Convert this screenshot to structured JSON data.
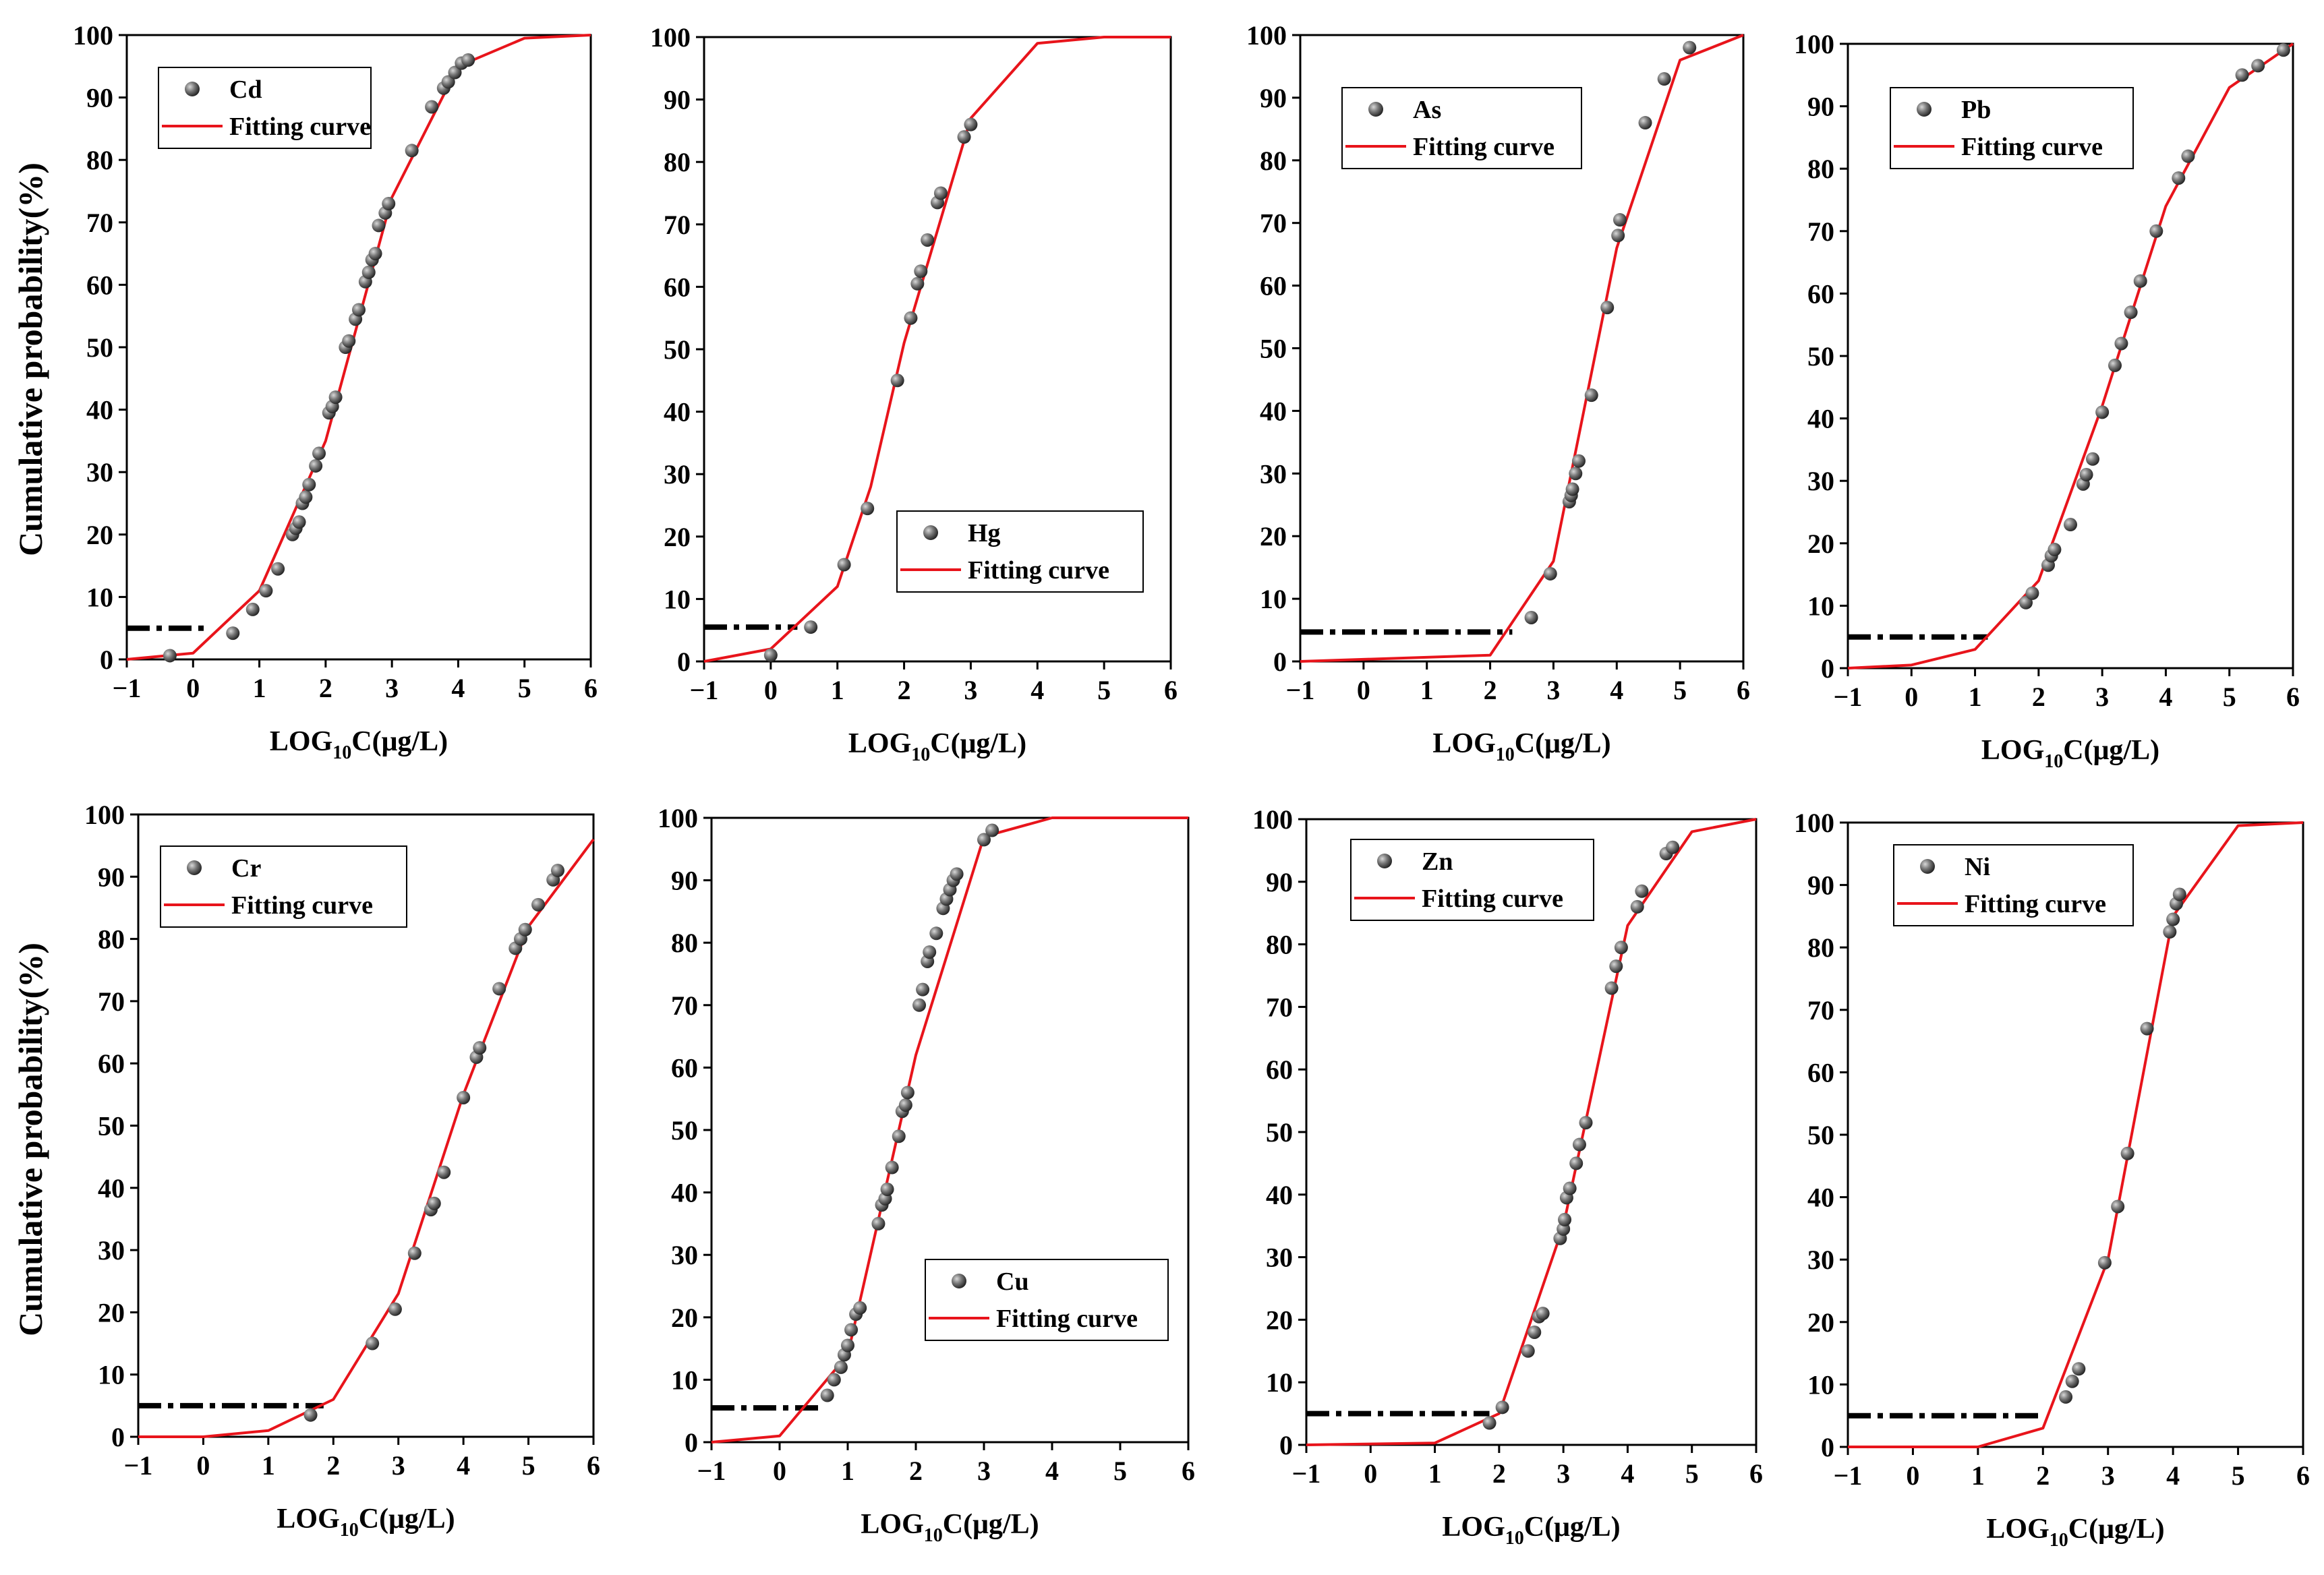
{
  "figure": {
    "ylabel": "Cumulative probability(%)",
    "xlabel_prefix": "LOG",
    "xlabel_sub": "10",
    "xlabel_suffix": "C(μg/L)"
  },
  "chart_data": [
    {
      "type": "scatter",
      "metal": "Cd",
      "legend": [
        "Cd",
        "Fitting curve"
      ],
      "legend_position": "top-left",
      "xlim": [
        -1,
        6
      ],
      "ylim": [
        0,
        100
      ],
      "xticks": [
        "−1",
        "0",
        "1",
        "2",
        "3",
        "4",
        "5",
        "6"
      ],
      "yticks": [
        "0",
        "10",
        "20",
        "30",
        "40",
        "50",
        "60",
        "70",
        "80",
        "90",
        "100"
      ],
      "threshold": {
        "y": 5,
        "x_end": 0.2
      },
      "points": [
        [
          -0.35,
          0.6
        ],
        [
          0.6,
          4.2
        ],
        [
          0.9,
          8
        ],
        [
          1.1,
          11
        ],
        [
          1.28,
          14.5
        ],
        [
          1.5,
          20
        ],
        [
          1.55,
          21
        ],
        [
          1.6,
          22
        ],
        [
          1.65,
          25
        ],
        [
          1.7,
          26
        ],
        [
          1.75,
          28
        ],
        [
          1.85,
          31
        ],
        [
          1.9,
          33
        ],
        [
          2.05,
          39.5
        ],
        [
          2.1,
          40.5
        ],
        [
          2.15,
          42
        ],
        [
          2.3,
          50
        ],
        [
          2.35,
          51
        ],
        [
          2.45,
          54.5
        ],
        [
          2.5,
          56
        ],
        [
          2.6,
          60.5
        ],
        [
          2.65,
          62
        ],
        [
          2.7,
          64
        ],
        [
          2.75,
          65
        ],
        [
          2.8,
          69.5
        ],
        [
          2.9,
          71.5
        ],
        [
          2.95,
          73
        ],
        [
          3.3,
          81.5
        ],
        [
          3.6,
          88.5
        ],
        [
          3.78,
          91.5
        ],
        [
          3.85,
          92.5
        ],
        [
          3.95,
          94
        ],
        [
          4.05,
          95.5
        ],
        [
          4.15,
          96
        ]
      ],
      "curve": [
        [
          -1,
          0
        ],
        [
          0,
          1
        ],
        [
          1,
          11
        ],
        [
          2,
          35
        ],
        [
          3,
          74
        ],
        [
          4,
          95
        ],
        [
          5,
          99.5
        ],
        [
          6,
          100
        ]
      ]
    },
    {
      "type": "scatter",
      "metal": "Hg",
      "legend": [
        "Hg",
        "Fitting curve"
      ],
      "legend_position": "center-right",
      "xlim": [
        -1,
        6
      ],
      "ylim": [
        0,
        100
      ],
      "xticks": [
        "−1",
        "0",
        "1",
        "2",
        "3",
        "4",
        "5",
        "6"
      ],
      "yticks": [
        "0",
        "10",
        "20",
        "30",
        "40",
        "50",
        "60",
        "70",
        "80",
        "90",
        "100"
      ],
      "threshold": {
        "y": 5.5,
        "x_end": 0.4
      },
      "points": [
        [
          0,
          1
        ],
        [
          0.6,
          5.5
        ],
        [
          1.1,
          15.5
        ],
        [
          1.45,
          24.5
        ],
        [
          1.9,
          45
        ],
        [
          2.1,
          55
        ],
        [
          2.2,
          60.5
        ],
        [
          2.25,
          62.5
        ],
        [
          2.35,
          67.5
        ],
        [
          2.5,
          73.5
        ],
        [
          2.55,
          75
        ],
        [
          2.9,
          84
        ],
        [
          3.0,
          86
        ]
      ],
      "curve": [
        [
          -1,
          0
        ],
        [
          0,
          2
        ],
        [
          1,
          12
        ],
        [
          1.5,
          28
        ],
        [
          2,
          51
        ],
        [
          3,
          87
        ],
        [
          4,
          99
        ],
        [
          5,
          100
        ],
        [
          6,
          100
        ]
      ]
    },
    {
      "type": "scatter",
      "metal": "As",
      "legend": [
        "As",
        "Fitting curve"
      ],
      "legend_position": "top-left",
      "xlim": [
        -1,
        6
      ],
      "ylim": [
        0,
        100
      ],
      "xticks": [
        "−1",
        "0",
        "1",
        "2",
        "3",
        "4",
        "5",
        "6"
      ],
      "yticks": [
        "0",
        "10",
        "20",
        "30",
        "40",
        "50",
        "60",
        "70",
        "80",
        "90",
        "100"
      ],
      "threshold": {
        "y": 4.7,
        "x_end": 2.35
      },
      "points": [
        [
          2.65,
          7
        ],
        [
          2.95,
          14
        ],
        [
          3.25,
          25.5
        ],
        [
          3.28,
          26.5
        ],
        [
          3.3,
          27.5
        ],
        [
          3.35,
          30
        ],
        [
          3.4,
          32
        ],
        [
          3.6,
          42.5
        ],
        [
          3.85,
          56.5
        ],
        [
          4.02,
          68
        ],
        [
          4.05,
          70.5
        ],
        [
          4.45,
          86
        ],
        [
          4.75,
          93
        ],
        [
          5.15,
          98
        ]
      ],
      "curve": [
        [
          -1,
          0
        ],
        [
          2,
          1
        ],
        [
          3,
          16
        ],
        [
          4,
          66
        ],
        [
          5,
          96
        ],
        [
          6,
          100
        ]
      ]
    },
    {
      "type": "scatter",
      "metal": "Pb",
      "legend": [
        "Pb",
        "Fitting curve"
      ],
      "legend_position": "top-left",
      "xlim": [
        -1,
        6
      ],
      "ylim": [
        0,
        100
      ],
      "xticks": [
        "−1",
        "0",
        "1",
        "2",
        "3",
        "4",
        "5",
        "6"
      ],
      "yticks": [
        "0",
        "10",
        "20",
        "30",
        "40",
        "50",
        "60",
        "70",
        "80",
        "90",
        "100"
      ],
      "threshold": {
        "y": 5,
        "x_end": 1.2
      },
      "points": [
        [
          1.8,
          10.5
        ],
        [
          1.9,
          12
        ],
        [
          2.15,
          16.5
        ],
        [
          2.2,
          18
        ],
        [
          2.25,
          19
        ],
        [
          2.5,
          23
        ],
        [
          2.7,
          29.5
        ],
        [
          2.75,
          31
        ],
        [
          2.85,
          33.5
        ],
        [
          3.0,
          41
        ],
        [
          3.2,
          48.5
        ],
        [
          3.3,
          52
        ],
        [
          3.45,
          57
        ],
        [
          3.6,
          62
        ],
        [
          3.85,
          70
        ],
        [
          4.2,
          78.5
        ],
        [
          4.35,
          82
        ],
        [
          5.2,
          95
        ],
        [
          5.45,
          96.5
        ],
        [
          5.85,
          99
        ]
      ],
      "curve": [
        [
          -1,
          0
        ],
        [
          0,
          0.5
        ],
        [
          1,
          3
        ],
        [
          2,
          14
        ],
        [
          3,
          42
        ],
        [
          4,
          74
        ],
        [
          5,
          93
        ],
        [
          6,
          100
        ]
      ]
    },
    {
      "type": "scatter",
      "metal": "Cr",
      "legend": [
        "Cr",
        "Fitting curve"
      ],
      "legend_position": "top-left",
      "xlim": [
        -1,
        6
      ],
      "ylim": [
        0,
        100
      ],
      "xticks": [
        "−1",
        "0",
        "1",
        "2",
        "3",
        "4",
        "5",
        "6"
      ],
      "yticks": [
        "0",
        "10",
        "20",
        "30",
        "40",
        "50",
        "60",
        "70",
        "80",
        "90",
        "100"
      ],
      "threshold": {
        "y": 5,
        "x_end": 1.85
      },
      "points": [
        [
          1.65,
          3.5
        ],
        [
          2.6,
          15
        ],
        [
          2.95,
          20.5
        ],
        [
          3.25,
          29.5
        ],
        [
          3.5,
          36.5
        ],
        [
          3.55,
          37.5
        ],
        [
          3.7,
          42.5
        ],
        [
          4.0,
          54.5
        ],
        [
          4.2,
          61
        ],
        [
          4.25,
          62.5
        ],
        [
          4.55,
          72
        ],
        [
          4.8,
          78.5
        ],
        [
          4.88,
          80
        ],
        [
          4.95,
          81.5
        ],
        [
          5.15,
          85.5
        ],
        [
          5.38,
          89.5
        ],
        [
          5.45,
          91
        ]
      ],
      "curve": [
        [
          -1,
          0
        ],
        [
          0,
          0
        ],
        [
          1,
          1
        ],
        [
          2,
          6
        ],
        [
          3,
          23
        ],
        [
          4,
          55
        ],
        [
          5,
          82
        ],
        [
          6,
          96
        ]
      ]
    },
    {
      "type": "scatter",
      "metal": "Cu",
      "legend": [
        "Cu",
        "Fitting curve"
      ],
      "legend_position": "bottom-right",
      "xlim": [
        -1,
        6
      ],
      "ylim": [
        0,
        100
      ],
      "xticks": [
        "−1",
        "0",
        "1",
        "2",
        "3",
        "4",
        "5",
        "6"
      ],
      "yticks": [
        "0",
        "10",
        "20",
        "30",
        "40",
        "50",
        "60",
        "70",
        "80",
        "90",
        "100"
      ],
      "threshold": {
        "y": 5.5,
        "x_end": 0.6
      },
      "points": [
        [
          0.7,
          7.5
        ],
        [
          0.8,
          10
        ],
        [
          0.9,
          12
        ],
        [
          0.95,
          14
        ],
        [
          1.0,
          15.5
        ],
        [
          1.05,
          18
        ],
        [
          1.12,
          20.5
        ],
        [
          1.18,
          21.5
        ],
        [
          1.45,
          35
        ],
        [
          1.5,
          38
        ],
        [
          1.55,
          39
        ],
        [
          1.58,
          40.5
        ],
        [
          1.65,
          44
        ],
        [
          1.75,
          49
        ],
        [
          1.8,
          53
        ],
        [
          1.85,
          54
        ],
        [
          1.88,
          56
        ],
        [
          2.05,
          70
        ],
        [
          2.1,
          72.5
        ],
        [
          2.17,
          77
        ],
        [
          2.2,
          78.5
        ],
        [
          2.3,
          81.5
        ],
        [
          2.4,
          85.5
        ],
        [
          2.45,
          87
        ],
        [
          2.5,
          88.5
        ],
        [
          2.55,
          90
        ],
        [
          2.6,
          91
        ],
        [
          3.0,
          96.5
        ],
        [
          3.12,
          98
        ]
      ],
      "curve": [
        [
          -1,
          0
        ],
        [
          0,
          1
        ],
        [
          1,
          14
        ],
        [
          2,
          62
        ],
        [
          3,
          97
        ],
        [
          4,
          100
        ],
        [
          5,
          100
        ],
        [
          6,
          100
        ]
      ]
    },
    {
      "type": "scatter",
      "metal": "Zn",
      "legend": [
        "Zn",
        "Fitting curve"
      ],
      "legend_position": "top-left",
      "xlim": [
        -1,
        6
      ],
      "ylim": [
        0,
        100
      ],
      "xticks": [
        "−1",
        "0",
        "1",
        "2",
        "3",
        "4",
        "5",
        "6"
      ],
      "yticks": [
        "0",
        "10",
        "20",
        "30",
        "40",
        "50",
        "60",
        "70",
        "80",
        "90",
        "100"
      ],
      "threshold": {
        "y": 5,
        "x_end": 1.85
      },
      "points": [
        [
          1.85,
          3.5
        ],
        [
          2.05,
          6
        ],
        [
          2.45,
          15
        ],
        [
          2.55,
          18
        ],
        [
          2.62,
          20.5
        ],
        [
          2.68,
          21
        ],
        [
          2.95,
          33
        ],
        [
          3.0,
          34.5
        ],
        [
          3.02,
          36
        ],
        [
          3.05,
          39.5
        ],
        [
          3.1,
          41
        ],
        [
          3.2,
          45
        ],
        [
          3.25,
          48
        ],
        [
          3.35,
          51.5
        ],
        [
          3.75,
          73
        ],
        [
          3.82,
          76.5
        ],
        [
          3.9,
          79.5
        ],
        [
          4.15,
          86
        ],
        [
          4.22,
          88.5
        ],
        [
          4.6,
          94.5
        ],
        [
          4.7,
          95.5
        ]
      ],
      "curve": [
        [
          -1,
          0
        ],
        [
          1,
          0.3
        ],
        [
          2,
          5
        ],
        [
          3,
          35
        ],
        [
          4,
          83
        ],
        [
          5,
          98
        ],
        [
          6,
          100
        ]
      ]
    },
    {
      "type": "scatter",
      "metal": "Ni",
      "legend": [
        "Ni",
        "Fitting curve"
      ],
      "legend_position": "top-left",
      "xlim": [
        -1,
        6
      ],
      "ylim": [
        0,
        100
      ],
      "xticks": [
        "−1",
        "0",
        "1",
        "2",
        "3",
        "4",
        "5",
        "6"
      ],
      "yticks": [
        "0",
        "10",
        "20",
        "30",
        "40",
        "50",
        "60",
        "70",
        "80",
        "90",
        "100"
      ],
      "threshold": {
        "y": 5,
        "x_end": 2.0
      },
      "points": [
        [
          2.35,
          8
        ],
        [
          2.45,
          10.5
        ],
        [
          2.55,
          12.5
        ],
        [
          2.95,
          29.5
        ],
        [
          3.15,
          38.5
        ],
        [
          3.3,
          47
        ],
        [
          3.6,
          67
        ],
        [
          3.95,
          82.5
        ],
        [
          4.0,
          84.5
        ],
        [
          4.05,
          87
        ],
        [
          4.1,
          88.5
        ]
      ],
      "curve": [
        [
          -1,
          0
        ],
        [
          1,
          0
        ],
        [
          2,
          3
        ],
        [
          3,
          30
        ],
        [
          4,
          85
        ],
        [
          5,
          99.5
        ],
        [
          6,
          100
        ]
      ]
    }
  ]
}
